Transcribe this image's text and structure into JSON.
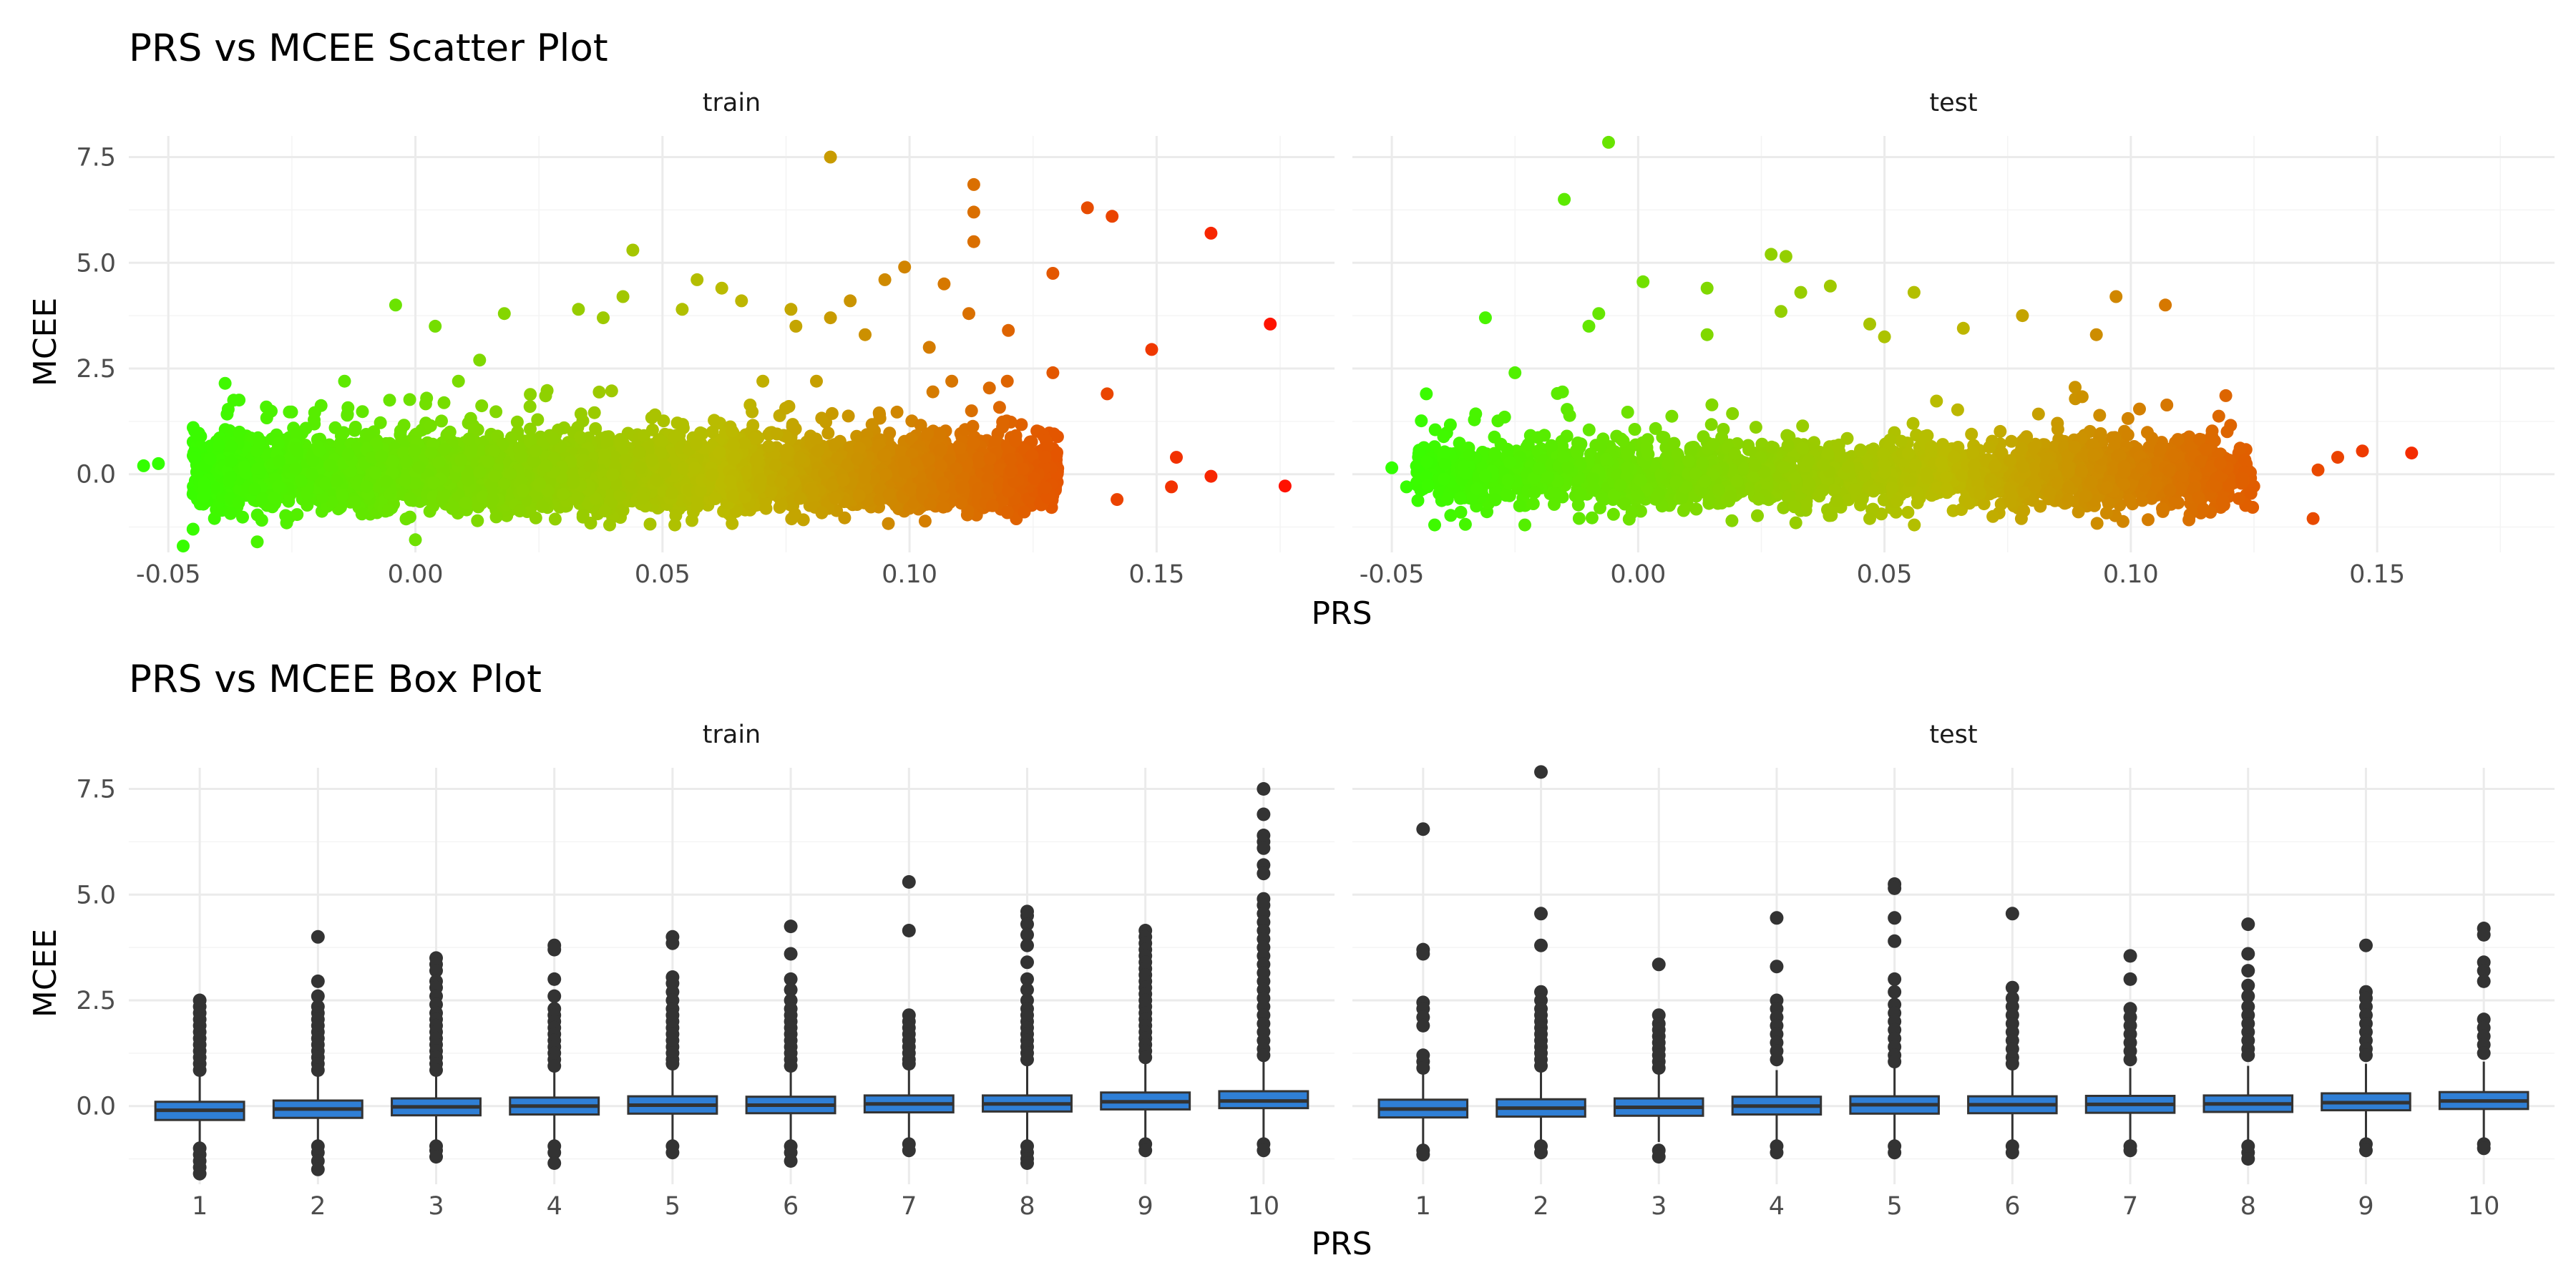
{
  "chart_data": [
    {
      "type": "scatter",
      "title": "PRS vs MCEE Scatter Plot",
      "xlabel": "PRS",
      "ylabel": "MCEE",
      "xlim": [
        -0.058,
        0.186
      ],
      "ylim": [
        -1.85,
        8.0
      ],
      "x_ticks": [
        "-0.05",
        "0.00",
        "0.05",
        "0.10",
        "0.15"
      ],
      "y_ticks": [
        "0.0",
        "2.5",
        "5.0",
        "7.5"
      ],
      "color_scale": {
        "low": "#33ff00",
        "mid": "#bbbb00",
        "high": "#ff1100"
      },
      "grid": true,
      "legend": "none",
      "facets": [
        {
          "label": "train",
          "n_bulk": 6000,
          "outliers": [
            [
              0.084,
              7.5
            ],
            [
              0.113,
              6.85
            ],
            [
              0.136,
              6.3
            ],
            [
              0.113,
              6.2
            ],
            [
              0.141,
              6.1
            ],
            [
              0.161,
              5.7
            ],
            [
              0.113,
              5.5
            ],
            [
              0.044,
              5.3
            ],
            [
              0.099,
              4.9
            ],
            [
              0.129,
              4.75
            ],
            [
              0.057,
              4.6
            ],
            [
              0.095,
              4.6
            ],
            [
              0.062,
              4.4
            ],
            [
              0.107,
              4.5
            ],
            [
              0.042,
              4.2
            ],
            [
              0.088,
              4.1
            ],
            [
              0.066,
              4.1
            ],
            [
              0.076,
              3.9
            ],
            [
              -0.004,
              4.0
            ],
            [
              0.112,
              3.8
            ],
            [
              0.173,
              3.55
            ],
            [
              0.084,
              3.7
            ],
            [
              0.018,
              3.8
            ],
            [
              0.033,
              3.9
            ],
            [
              0.149,
              2.95
            ],
            [
              0.054,
              3.9
            ],
            [
              0.12,
              3.4
            ],
            [
              0.077,
              3.5
            ],
            [
              0.004,
              3.5
            ],
            [
              0.038,
              3.7
            ],
            [
              0.091,
              3.3
            ],
            [
              0.104,
              3.0
            ],
            [
              0.013,
              2.7
            ],
            [
              0.129,
              2.4
            ],
            [
              0.14,
              1.9
            ],
            [
              0.161,
              -0.05
            ],
            [
              0.176,
              -0.28
            ],
            [
              0.153,
              -0.3
            ],
            [
              0.142,
              -0.6
            ],
            [
              0.154,
              0.4
            ],
            [
              -0.047,
              -1.7
            ],
            [
              -0.045,
              -1.3
            ],
            [
              -0.032,
              -1.6
            ],
            [
              0.0,
              -1.55
            ],
            [
              -0.052,
              0.25
            ],
            [
              -0.055,
              0.2
            ]
          ]
        },
        {
          "label": "test",
          "n_bulk": 2400,
          "outliers": [
            [
              -0.006,
              7.85
            ],
            [
              -0.015,
              6.5
            ],
            [
              0.027,
              5.2
            ],
            [
              0.03,
              5.15
            ],
            [
              0.001,
              4.55
            ],
            [
              0.039,
              4.45
            ],
            [
              0.014,
              4.4
            ],
            [
              0.033,
              4.3
            ],
            [
              0.056,
              4.3
            ],
            [
              0.107,
              4.0
            ],
            [
              0.097,
              4.2
            ],
            [
              0.029,
              3.85
            ],
            [
              -0.008,
              3.8
            ],
            [
              -0.031,
              3.7
            ],
            [
              0.047,
              3.55
            ],
            [
              0.078,
              3.75
            ],
            [
              0.066,
              3.45
            ],
            [
              0.093,
              3.3
            ],
            [
              0.05,
              3.25
            ],
            [
              0.014,
              3.3
            ],
            [
              -0.01,
              3.5
            ],
            [
              -0.025,
              2.4
            ],
            [
              0.137,
              -1.05
            ],
            [
              0.157,
              0.5
            ],
            [
              0.147,
              0.55
            ],
            [
              0.142,
              0.4
            ],
            [
              0.138,
              0.1
            ],
            [
              -0.043,
              1.9
            ],
            [
              -0.05,
              0.15
            ],
            [
              -0.047,
              -0.3
            ],
            [
              -0.036,
              -0.9
            ],
            [
              -0.023,
              -1.2
            ],
            [
              0.032,
              -1.15
            ],
            [
              0.072,
              -1.0
            ],
            [
              0.047,
              -1.05
            ]
          ]
        }
      ]
    },
    {
      "type": "box",
      "title": "PRS vs MCEE Box Plot",
      "xlabel": "PRS",
      "ylabel": "MCEE",
      "ylim": [
        -1.85,
        8.0
      ],
      "categories": [
        "1",
        "2",
        "3",
        "4",
        "5",
        "6",
        "7",
        "8",
        "9",
        "10"
      ],
      "y_ticks": [
        "0.0",
        "2.5",
        "5.0",
        "7.5"
      ],
      "box_fill": "#2f7fd6",
      "grid": true,
      "facets": [
        {
          "label": "train",
          "boxes": [
            {
              "q1": -0.33,
              "median": -0.1,
              "q3": 0.1,
              "whisker_low": -0.95,
              "whisker_high": 0.72,
              "outliers_high": [
                2.5,
                2.35,
                2.2,
                2.05,
                1.9,
                1.75,
                1.6,
                1.45,
                1.3,
                1.15,
                1.0,
                0.85
              ],
              "outliers_low": [
                -1.0,
                -1.15,
                -1.3,
                -1.45,
                -1.6
              ]
            },
            {
              "q1": -0.28,
              "median": -0.07,
              "q3": 0.13,
              "whisker_low": -0.9,
              "whisker_high": 0.75,
              "outliers_high": [
                4.0,
                2.95,
                2.6,
                2.35,
                2.2,
                2.05,
                1.9,
                1.75,
                1.6,
                1.45,
                1.3,
                1.15,
                1.0,
                0.85
              ],
              "outliers_low": [
                -0.95,
                -1.1,
                -1.3,
                -1.5
              ]
            },
            {
              "q1": -0.22,
              "median": -0.02,
              "q3": 0.18,
              "whisker_low": -0.85,
              "whisker_high": 0.8,
              "outliers_high": [
                3.5,
                3.35,
                3.2,
                2.95,
                2.8,
                2.6,
                2.4,
                2.2,
                2.05,
                1.9,
                1.75,
                1.6,
                1.45,
                1.3,
                1.15,
                1.0,
                0.85
              ],
              "outliers_low": [
                -0.95,
                -1.05,
                -1.2
              ]
            },
            {
              "q1": -0.2,
              "median": 0.0,
              "q3": 0.2,
              "whisker_low": -0.85,
              "whisker_high": 0.85,
              "outliers_high": [
                3.8,
                3.7,
                3.0,
                2.6,
                2.3,
                2.15,
                2.0,
                1.85,
                1.7,
                1.55,
                1.4,
                1.25,
                1.1,
                0.95
              ],
              "outliers_low": [
                -0.95,
                -1.1,
                -1.35
              ]
            },
            {
              "q1": -0.18,
              "median": 0.02,
              "q3": 0.23,
              "whisker_low": -0.85,
              "whisker_high": 0.9,
              "outliers_high": [
                4.0,
                3.85,
                3.05,
                2.9,
                2.7,
                2.5,
                2.3,
                2.15,
                2.0,
                1.85,
                1.7,
                1.55,
                1.4,
                1.25,
                1.1,
                1.0
              ],
              "outliers_low": [
                -0.95,
                -1.1
              ]
            },
            {
              "q1": -0.17,
              "median": 0.02,
              "q3": 0.22,
              "whisker_low": -0.85,
              "whisker_high": 0.85,
              "outliers_high": [
                4.25,
                3.6,
                3.0,
                2.75,
                2.5,
                2.3,
                2.15,
                2.0,
                1.85,
                1.7,
                1.55,
                1.4,
                1.25,
                1.1,
                0.95
              ],
              "outliers_low": [
                -0.95,
                -1.1,
                -1.3
              ]
            },
            {
              "q1": -0.15,
              "median": 0.05,
              "q3": 0.25,
              "whisker_low": -0.8,
              "whisker_high": 0.9,
              "outliers_high": [
                5.3,
                4.15,
                2.15,
                2.0,
                1.85,
                1.7,
                1.55,
                1.4,
                1.25,
                1.1,
                1.0
              ],
              "outliers_low": [
                -0.9,
                -1.05
              ]
            },
            {
              "q1": -0.13,
              "median": 0.05,
              "q3": 0.25,
              "whisker_low": -0.85,
              "whisker_high": 0.95,
              "outliers_high": [
                4.6,
                4.5,
                4.3,
                4.05,
                3.8,
                3.4,
                3.0,
                2.75,
                2.5,
                2.3,
                2.15,
                2.0,
                1.85,
                1.7,
                1.55,
                1.4,
                1.25,
                1.1
              ],
              "outliers_low": [
                -0.95,
                -1.1,
                -1.25,
                -1.35
              ]
            },
            {
              "q1": -0.08,
              "median": 0.1,
              "q3": 0.32,
              "whisker_low": -0.8,
              "whisker_high": 1.05,
              "outliers_high": [
                4.15,
                4.0,
                3.85,
                3.7,
                3.55,
                3.4,
                3.25,
                3.1,
                2.95,
                2.8,
                2.65,
                2.5,
                2.35,
                2.2,
                2.05,
                1.9,
                1.75,
                1.6,
                1.45,
                1.3,
                1.15
              ],
              "outliers_low": [
                -0.9,
                -1.05
              ]
            },
            {
              "q1": -0.05,
              "median": 0.12,
              "q3": 0.35,
              "whisker_low": -0.8,
              "whisker_high": 1.1,
              "outliers_high": [
                7.5,
                6.9,
                6.4,
                6.25,
                6.1,
                5.7,
                5.5,
                4.9,
                4.75,
                4.55,
                4.35,
                4.15,
                3.95,
                3.75,
                3.55,
                3.35,
                3.15,
                2.95,
                2.75,
                2.55,
                2.35,
                2.15,
                1.95,
                1.75,
                1.55,
                1.35,
                1.2
              ],
              "outliers_low": [
                -0.9,
                -1.05
              ]
            }
          ]
        },
        {
          "label": "test",
          "boxes": [
            {
              "q1": -0.27,
              "median": -0.07,
              "q3": 0.15,
              "whisker_low": -0.9,
              "whisker_high": 0.8,
              "outliers_high": [
                6.55,
                3.7,
                3.6,
                2.45,
                2.3,
                2.1,
                1.9,
                1.2,
                1.05,
                0.9
              ],
              "outliers_low": [
                -1.05,
                -1.15
              ]
            },
            {
              "q1": -0.25,
              "median": -0.05,
              "q3": 0.16,
              "whisker_low": -0.9,
              "whisker_high": 0.8,
              "outliers_high": [
                7.9,
                4.55,
                3.8,
                2.7,
                2.5,
                2.3,
                2.15,
                2.0,
                1.85,
                1.7,
                1.55,
                1.4,
                1.25,
                1.1,
                0.95
              ],
              "outliers_low": [
                -0.95,
                -1.1
              ]
            },
            {
              "q1": -0.23,
              "median": -0.03,
              "q3": 0.18,
              "whisker_low": -0.85,
              "whisker_high": 0.8,
              "outliers_high": [
                3.35,
                2.15,
                1.95,
                1.8,
                1.65,
                1.5,
                1.35,
                1.2,
                1.05,
                0.9
              ],
              "outliers_low": [
                -1.05,
                -1.2
              ]
            },
            {
              "q1": -0.2,
              "median": 0.0,
              "q3": 0.22,
              "whisker_low": -0.85,
              "whisker_high": 0.85,
              "outliers_high": [
                4.45,
                3.3,
                2.5,
                2.3,
                2.1,
                1.9,
                1.7,
                1.5,
                1.3,
                1.1
              ],
              "outliers_low": [
                -0.95,
                -1.1
              ]
            },
            {
              "q1": -0.18,
              "median": 0.03,
              "q3": 0.23,
              "whisker_low": -0.85,
              "whisker_high": 0.9,
              "outliers_high": [
                5.25,
                5.15,
                4.45,
                3.9,
                3.0,
                2.7,
                2.4,
                2.2,
                2.0,
                1.8,
                1.6,
                1.4,
                1.2,
                1.05
              ],
              "outliers_low": [
                -0.95,
                -1.1
              ]
            },
            {
              "q1": -0.17,
              "median": 0.03,
              "q3": 0.23,
              "whisker_low": -0.85,
              "whisker_high": 0.9,
              "outliers_high": [
                4.55,
                2.8,
                2.55,
                2.35,
                2.15,
                1.95,
                1.75,
                1.55,
                1.35,
                1.15,
                1.0
              ],
              "outliers_low": [
                -0.95,
                -1.1
              ]
            },
            {
              "q1": -0.16,
              "median": 0.04,
              "q3": 0.24,
              "whisker_low": -0.85,
              "whisker_high": 0.9,
              "outliers_high": [
                3.55,
                3.0,
                2.3,
                2.1,
                1.9,
                1.7,
                1.5,
                1.3,
                1.1
              ],
              "outliers_low": [
                -0.95,
                -1.05
              ]
            },
            {
              "q1": -0.14,
              "median": 0.05,
              "q3": 0.25,
              "whisker_low": -0.85,
              "whisker_high": 0.95,
              "outliers_high": [
                4.3,
                3.6,
                3.2,
                2.85,
                2.6,
                2.35,
                2.15,
                1.95,
                1.75,
                1.55,
                1.35,
                1.2
              ],
              "outliers_low": [
                -0.95,
                -1.1,
                -1.25
              ]
            },
            {
              "q1": -0.1,
              "median": 0.08,
              "q3": 0.3,
              "whisker_low": -0.8,
              "whisker_high": 1.0,
              "outliers_high": [
                3.8,
                2.7,
                2.55,
                2.35,
                2.15,
                1.95,
                1.75,
                1.55,
                1.35,
                1.2
              ],
              "outliers_low": [
                -0.9,
                -1.05
              ]
            },
            {
              "q1": -0.07,
              "median": 0.12,
              "q3": 0.33,
              "whisker_low": -0.8,
              "whisker_high": 1.05,
              "outliers_high": [
                4.2,
                4.05,
                3.4,
                3.2,
                2.95,
                2.05,
                1.85,
                1.65,
                1.45,
                1.25
              ],
              "outliers_low": [
                -0.9,
                -1.0
              ]
            }
          ]
        }
      ]
    }
  ]
}
